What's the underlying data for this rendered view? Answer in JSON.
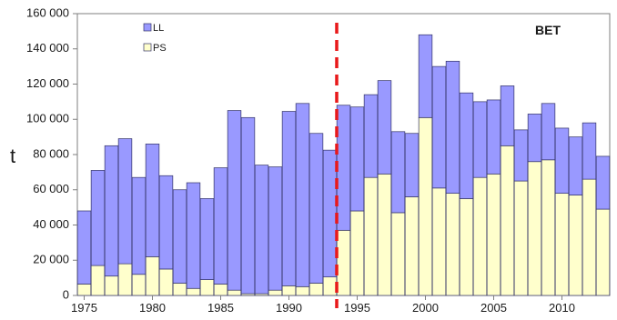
{
  "chart_data": {
    "type": "bar",
    "stacked": true,
    "title": "BET",
    "xlabel": "",
    "ylabel": "t",
    "ylim": [
      0,
      160000
    ],
    "yticks": [
      0,
      20000,
      40000,
      60000,
      80000,
      100000,
      120000,
      140000,
      160000
    ],
    "ytick_labels": [
      "0",
      "20 000",
      "40 000",
      "60 000",
      "80 000",
      "100 000",
      "120 000",
      "140 000",
      "160 000"
    ],
    "xtick_labels": [
      "1975",
      "1980",
      "1985",
      "1990",
      "1995",
      "2000",
      "2005",
      "2010"
    ],
    "categories": [
      1975,
      1976,
      1977,
      1978,
      1979,
      1980,
      1981,
      1982,
      1983,
      1984,
      1985,
      1986,
      1987,
      1988,
      1989,
      1990,
      1991,
      1992,
      1993,
      1994,
      1995,
      1996,
      1997,
      1998,
      1999,
      2000,
      2001,
      2002,
      2003,
      2004,
      2005,
      2006,
      2007,
      2008,
      2009,
      2010,
      2011,
      2012,
      2013
    ],
    "series": [
      {
        "name": "PS",
        "color": "#ffffcc",
        "values": [
          6500,
          17000,
          11000,
          18000,
          12000,
          22000,
          15000,
          7000,
          4000,
          9000,
          6500,
          3000,
          1000,
          1000,
          3000,
          5500,
          5000,
          7000,
          10500,
          37000,
          48000,
          67000,
          69000,
          47000,
          56000,
          101000,
          61000,
          58000,
          55000,
          67000,
          69000,
          85000,
          65000,
          76000,
          77000,
          58000,
          57000,
          66000,
          49000
        ]
      },
      {
        "name": "LL",
        "color": "#9999ff",
        "values": [
          41500,
          54000,
          74000,
          71000,
          55000,
          64000,
          53000,
          53000,
          60000,
          46000,
          66000,
          102000,
          100000,
          73000,
          70000,
          99000,
          104000,
          85000,
          72000,
          71000,
          59000,
          47000,
          53000,
          46000,
          36000,
          47000,
          69000,
          75000,
          60000,
          43000,
          42000,
          34000,
          29000,
          27000,
          32000,
          37000,
          33000,
          32000,
          30000
        ]
      }
    ],
    "legend_position": "top-left",
    "legend_entries": [
      "LL",
      "PS"
    ],
    "reference_line": {
      "x": 1993.5,
      "style": "dashed",
      "color": "#e8191a"
    },
    "grid": false
  }
}
